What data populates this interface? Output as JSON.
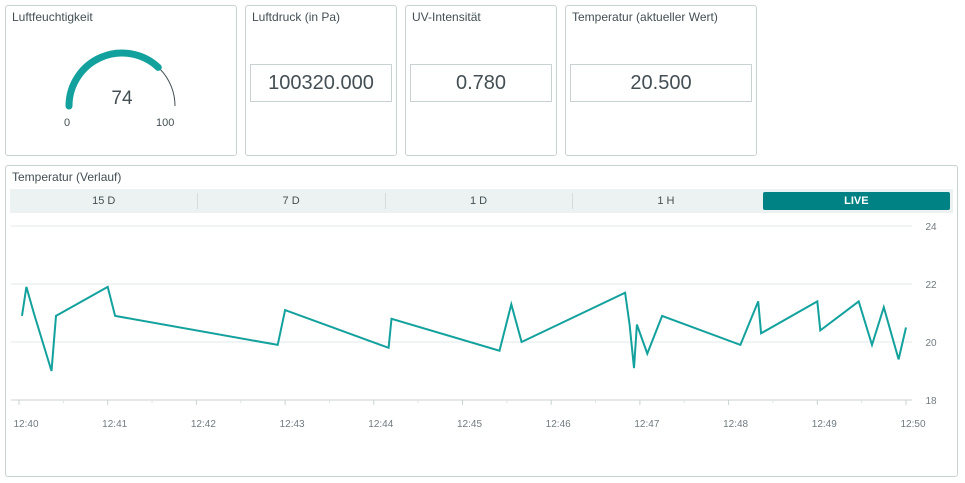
{
  "humidity": {
    "title": "Luftfeuchtigkeit",
    "value": "74",
    "min": "0",
    "max": "100",
    "fraction": 0.74,
    "color": "#13a19d"
  },
  "pressure": {
    "title": "Luftdruck (in Pa)",
    "value": "100320.000"
  },
  "uv": {
    "title": "UV-Intensität",
    "value": "0.780"
  },
  "temperature": {
    "title": "Temperatur (aktueller Wert)",
    "value": "20.500"
  },
  "history": {
    "title": "Temperatur (Verlauf)",
    "tabs": [
      "15 D",
      "7 D",
      "1 D",
      "1 H",
      "LIVE"
    ],
    "active_tab": "LIVE",
    "accent": "#008184"
  },
  "chart_data": {
    "type": "line",
    "title": "Temperatur (Verlauf)",
    "xlabel": "",
    "ylabel": "",
    "x_ticks": [
      "12:40",
      "12:41",
      "12:42",
      "12:43",
      "12:44",
      "12:45",
      "12:46",
      "12:47",
      "12:48",
      "12:49",
      "12:50"
    ],
    "y_ticks": [
      18,
      20,
      22,
      24
    ],
    "ylim": [
      18,
      24
    ],
    "y_axis_side": "right",
    "grid": true,
    "line_color": "#13a19d",
    "series": [
      {
        "x": [
          "12:40:02",
          "12:40:05",
          "12:40:10",
          "12:40:22",
          "12:40:25",
          "12:41:00",
          "12:41:05",
          "12:42:55",
          "12:43:00",
          "12:44:10",
          "12:44:12",
          "12:45:25",
          "12:45:33",
          "12:45:40",
          "12:46:50",
          "12:46:53",
          "12:46:56",
          "12:46:58",
          "12:47:05",
          "12:47:15",
          "12:48:08",
          "12:48:20",
          "12:48:22",
          "12:49:00",
          "12:49:02",
          "12:49:28",
          "12:49:37",
          "12:49:45",
          "12:49:55",
          "12:50:00"
        ],
        "y": [
          20.9,
          21.9,
          21.0,
          19.0,
          20.9,
          21.9,
          20.9,
          19.9,
          21.1,
          19.8,
          20.8,
          19.7,
          21.3,
          20.0,
          21.7,
          20.6,
          19.1,
          20.6,
          19.6,
          20.9,
          19.9,
          21.4,
          20.3,
          21.4,
          20.4,
          21.4,
          19.9,
          21.2,
          19.4,
          20.5
        ]
      }
    ]
  }
}
